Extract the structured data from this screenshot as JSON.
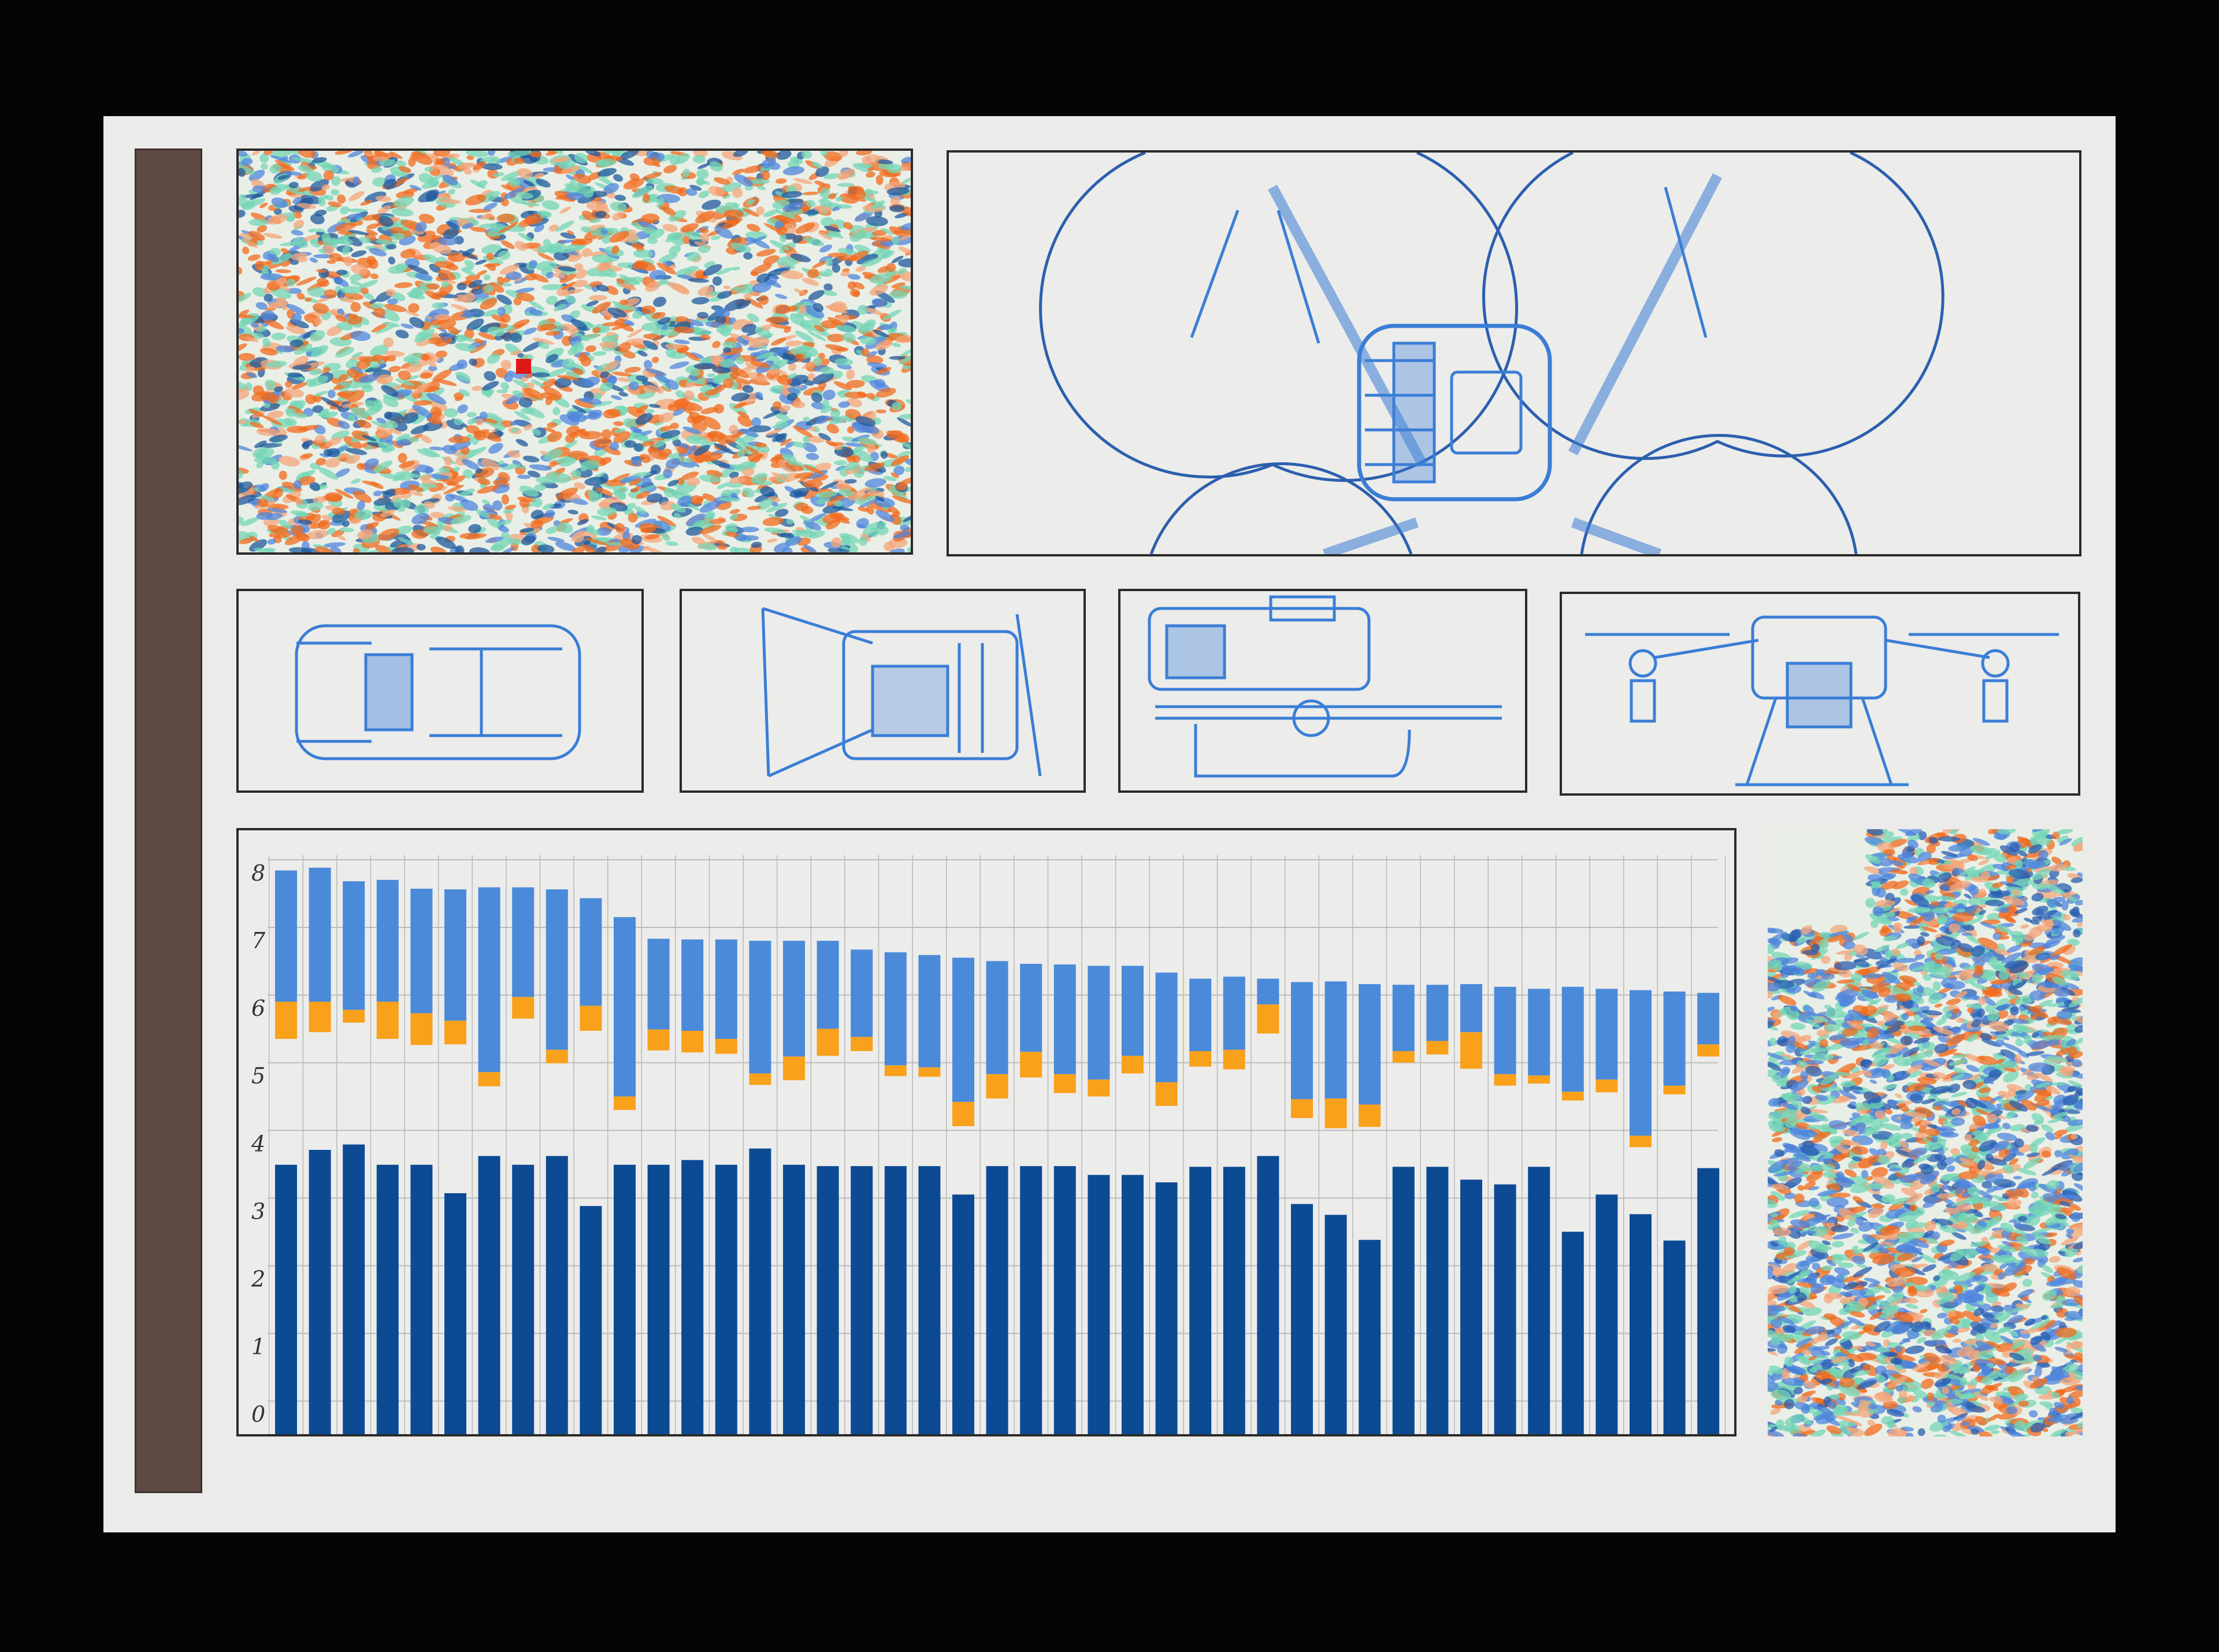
{
  "colors": {
    "background": "#050505",
    "paper": "#ebebea",
    "side_bar": "#5e4a44",
    "sketch_blue": "#3a7ed6",
    "purple_swatch": "#4a2296",
    "bar_dark": "#0d4a94",
    "bar_light": "#4a8ad9",
    "bar_orange": "#f9a11b",
    "texture_orange": "#f26b1d",
    "texture_teal": "#74d6b6",
    "texture_blue": "#4f86dc"
  },
  "panels": {
    "texture_top_left": "texture",
    "drone_top_view": "drone-top-view-sketch",
    "detail_sketches": [
      "drone-body-top",
      "drone-body-angle",
      "drone-side-sprayer",
      "drone-front-view"
    ],
    "texture_right": "texture"
  },
  "chart_data": {
    "type": "bar",
    "title": "",
    "xlabel": "",
    "ylabel": "",
    "ylim": [
      0,
      8
    ],
    "yticks": [
      "0",
      "1",
      "2",
      "3",
      "4",
      "5",
      "6",
      "7",
      "8"
    ],
    "grid": true,
    "legend": "none",
    "bar_count": 43,
    "series": [
      {
        "color": "#0d4a94",
        "values": [
          3.68,
          3.9,
          3.98,
          3.68,
          3.68,
          3.26,
          3.81,
          3.68,
          3.81,
          3.07,
          3.68,
          3.68,
          3.75,
          3.68,
          3.92,
          3.68,
          3.66,
          3.66,
          3.66,
          3.66,
          3.24,
          3.66,
          3.66,
          3.66,
          3.53,
          3.53,
          3.42,
          3.65,
          3.65,
          3.81,
          3.1,
          2.94,
          2.57,
          3.65,
          3.65,
          3.46,
          3.39,
          3.65,
          2.69,
          3.24,
          2.95,
          2.56,
          3.63
        ]
      },
      {
        "color": "#f9a11b",
        "ranges": [
          [
            5.54,
            6.09
          ],
          [
            5.64,
            6.09
          ],
          [
            5.78,
            5.97
          ],
          [
            5.54,
            6.09
          ],
          [
            5.45,
            5.92
          ],
          [
            5.46,
            5.81
          ],
          [
            4.84,
            5.05
          ],
          [
            5.84,
            6.16
          ],
          [
            5.18,
            5.38
          ],
          [
            5.66,
            6.03
          ],
          [
            4.49,
            4.69
          ],
          [
            5.37,
            5.68
          ],
          [
            5.34,
            5.66
          ],
          [
            5.32,
            5.54
          ],
          [
            4.86,
            5.03
          ],
          [
            4.93,
            5.28
          ],
          [
            5.29,
            5.69
          ],
          [
            5.36,
            5.57
          ],
          [
            4.99,
            5.15
          ],
          [
            4.98,
            5.12
          ],
          [
            4.25,
            4.61
          ],
          [
            4.66,
            5.02
          ],
          [
            4.97,
            5.35
          ],
          [
            4.74,
            5.02
          ],
          [
            4.69,
            4.94
          ],
          [
            5.03,
            5.29
          ],
          [
            4.55,
            4.9
          ],
          [
            5.13,
            5.36
          ],
          [
            5.09,
            5.38
          ],
          [
            5.62,
            6.05
          ],
          [
            4.37,
            4.65
          ],
          [
            4.22,
            4.66
          ],
          [
            4.24,
            4.57
          ],
          [
            5.19,
            5.36
          ],
          [
            5.31,
            5.51
          ],
          [
            5.1,
            5.64
          ],
          [
            4.85,
            5.02
          ],
          [
            4.88,
            5.0
          ],
          [
            4.63,
            4.76
          ],
          [
            4.75,
            4.94
          ],
          [
            3.94,
            4.11
          ],
          [
            4.72,
            4.85
          ],
          [
            5.28,
            5.46
          ]
        ]
      },
      {
        "color": "#4a8ad9",
        "ranges": [
          [
            6.09,
            8.03
          ],
          [
            6.09,
            8.07
          ],
          [
            5.97,
            7.87
          ],
          [
            6.09,
            7.89
          ],
          [
            5.92,
            7.76
          ],
          [
            5.81,
            7.75
          ],
          [
            5.05,
            7.78
          ],
          [
            6.16,
            7.78
          ],
          [
            5.38,
            7.75
          ],
          [
            6.03,
            7.62
          ],
          [
            4.69,
            7.34
          ],
          [
            5.68,
            7.02
          ],
          [
            5.66,
            7.01
          ],
          [
            5.54,
            7.01
          ],
          [
            5.03,
            6.99
          ],
          [
            5.28,
            6.99
          ],
          [
            5.69,
            6.99
          ],
          [
            5.57,
            6.86
          ],
          [
            5.15,
            6.82
          ],
          [
            5.12,
            6.78
          ],
          [
            4.61,
            6.74
          ],
          [
            5.02,
            6.69
          ],
          [
            5.35,
            6.65
          ],
          [
            5.02,
            6.64
          ],
          [
            4.94,
            6.62
          ],
          [
            5.29,
            6.62
          ],
          [
            4.9,
            6.52
          ],
          [
            5.36,
            6.43
          ],
          [
            5.38,
            6.46
          ],
          [
            6.05,
            6.43
          ],
          [
            4.65,
            6.38
          ],
          [
            4.66,
            6.39
          ],
          [
            4.57,
            6.35
          ],
          [
            5.36,
            6.34
          ],
          [
            5.51,
            6.34
          ],
          [
            5.64,
            6.35
          ],
          [
            5.02,
            6.31
          ],
          [
            5.0,
            6.28
          ],
          [
            4.76,
            6.31
          ],
          [
            4.94,
            6.28
          ],
          [
            4.11,
            6.26
          ],
          [
            4.85,
            6.24
          ],
          [
            5.46,
            6.22
          ]
        ]
      }
    ]
  }
}
